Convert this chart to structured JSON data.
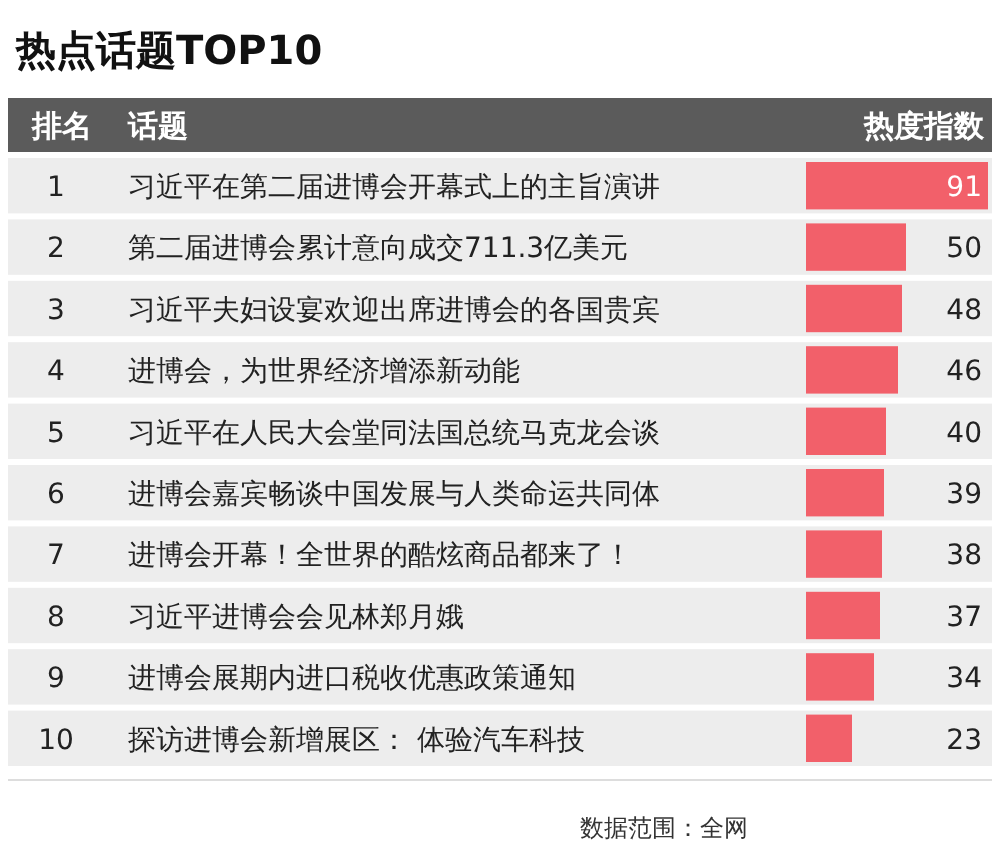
{
  "chart_data": {
    "type": "bar",
    "orientation": "horizontal",
    "title": "热点话题TOP10",
    "ylabel": "话题",
    "xlabel": "热度指数",
    "categories": [
      "习近平在第二届进博会开幕式上的主旨演讲",
      "第二届进博会累计意向成交711.3亿美元",
      "习近平夫妇设宴欢迎出席进博会的各国贵宾",
      "进博会，为世界经济增添新动能",
      "习近平在人民大会堂同法国总统马克龙会谈",
      "进博会嘉宾畅谈中国发展与人类命运共同体",
      "进博会开幕！全世界的酷炫商品都来了！",
      "习近平进博会会见林郑月娥",
      "进博会展期内进口税收优惠政策通知",
      "探访进博会新增展区： 体验汽车科技"
    ],
    "values": [
      91,
      50,
      48,
      46,
      40,
      39,
      38,
      37,
      34,
      23
    ],
    "color": "#f2606a",
    "data_labels": true,
    "annotations": [
      "排名",
      "1",
      "2",
      "3",
      "4",
      "5",
      "6",
      "7",
      "8",
      "9",
      "10",
      "数据范围：全网"
    ]
  }
}
